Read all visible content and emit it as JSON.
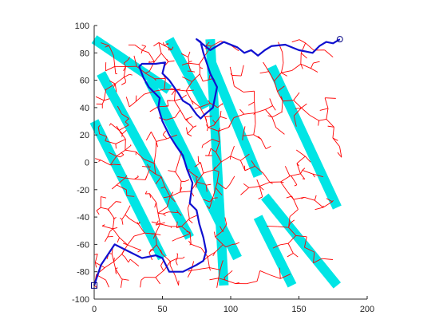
{
  "chart_data": {
    "type": "line",
    "title": "",
    "xlabel": "",
    "ylabel": "",
    "xlim": [
      0,
      200
    ],
    "ylim": [
      -100,
      100
    ],
    "x_ticks": [
      "0",
      "50",
      "100",
      "150",
      "200"
    ],
    "y_ticks": [
      "100",
      "80",
      "60",
      "40",
      "20",
      "0",
      "-20",
      "-40",
      "-60",
      "-80",
      "-100"
    ],
    "grid": false,
    "legend": "none",
    "colors": {
      "obstacle": "#00e5e5",
      "tree": "#ff0000",
      "path": "#1010d0",
      "axis": "#262626"
    },
    "markers": {
      "start": {
        "shape": "square",
        "x": 0,
        "y": -90
      },
      "goal": {
        "shape": "circle",
        "x": 180,
        "y": 90
      }
    },
    "obstacles": [
      {
        "x": [
          0,
          55
        ],
        "y": [
          90,
          53
        ],
        "width_units": 7
      },
      {
        "x": [
          0,
          50
        ],
        "y": [
          30,
          -70
        ],
        "width_units": 7
      },
      {
        "x": [
          5,
          70
        ],
        "y": [
          65,
          -55
        ],
        "width_units": 7
      },
      {
        "x": [
          40,
          105
        ],
        "y": [
          60,
          -70
        ],
        "width_units": 7
      },
      {
        "x": [
          55,
          82
        ],
        "y": [
          90,
          40
        ],
        "width_units": 7
      },
      {
        "x": [
          85,
          95
        ],
        "y": [
          90,
          -90
        ],
        "width_units": 7
      },
      {
        "x": [
          120,
          145
        ],
        "y": [
          -40,
          -90
        ],
        "width_units": 7
      },
      {
        "x": [
          130,
          178
        ],
        "y": [
          70,
          -33
        ],
        "width_units": 7
      },
      {
        "x": [
          85,
          120
        ],
        "y": [
          75,
          -10
        ],
        "width_units": 7
      },
      {
        "x": [
          125,
          178
        ],
        "y": [
          -25,
          -90
        ],
        "width_units": 7
      }
    ],
    "path": {
      "x": [
        0,
        5,
        15,
        25,
        35,
        45,
        50,
        55,
        65,
        75,
        80,
        82,
        80,
        77,
        75,
        70,
        72,
        68,
        65,
        60,
        55,
        50,
        47,
        48,
        45,
        40,
        36,
        33,
        35,
        45,
        52,
        50,
        55,
        62,
        65,
        70,
        75,
        78,
        81,
        87,
        90,
        85,
        80,
        78,
        75,
        85,
        95,
        105,
        110,
        115,
        120,
        125,
        130,
        140,
        150,
        160,
        165,
        170,
        175,
        180
      ],
      "y": [
        -90,
        -75,
        -60,
        -65,
        -70,
        -68,
        -70,
        -80,
        -80,
        -75,
        -72,
        -65,
        -55,
        -45,
        -35,
        -30,
        -15,
        -5,
        5,
        12,
        20,
        30,
        40,
        47,
        50,
        55,
        62,
        70,
        72,
        72,
        73,
        65,
        60,
        50,
        45,
        42,
        35,
        32,
        35,
        40,
        55,
        65,
        80,
        88,
        90,
        82,
        88,
        84,
        80,
        82,
        78,
        82,
        85,
        86,
        82,
        80,
        85,
        88,
        87,
        90
      ]
    }
  }
}
